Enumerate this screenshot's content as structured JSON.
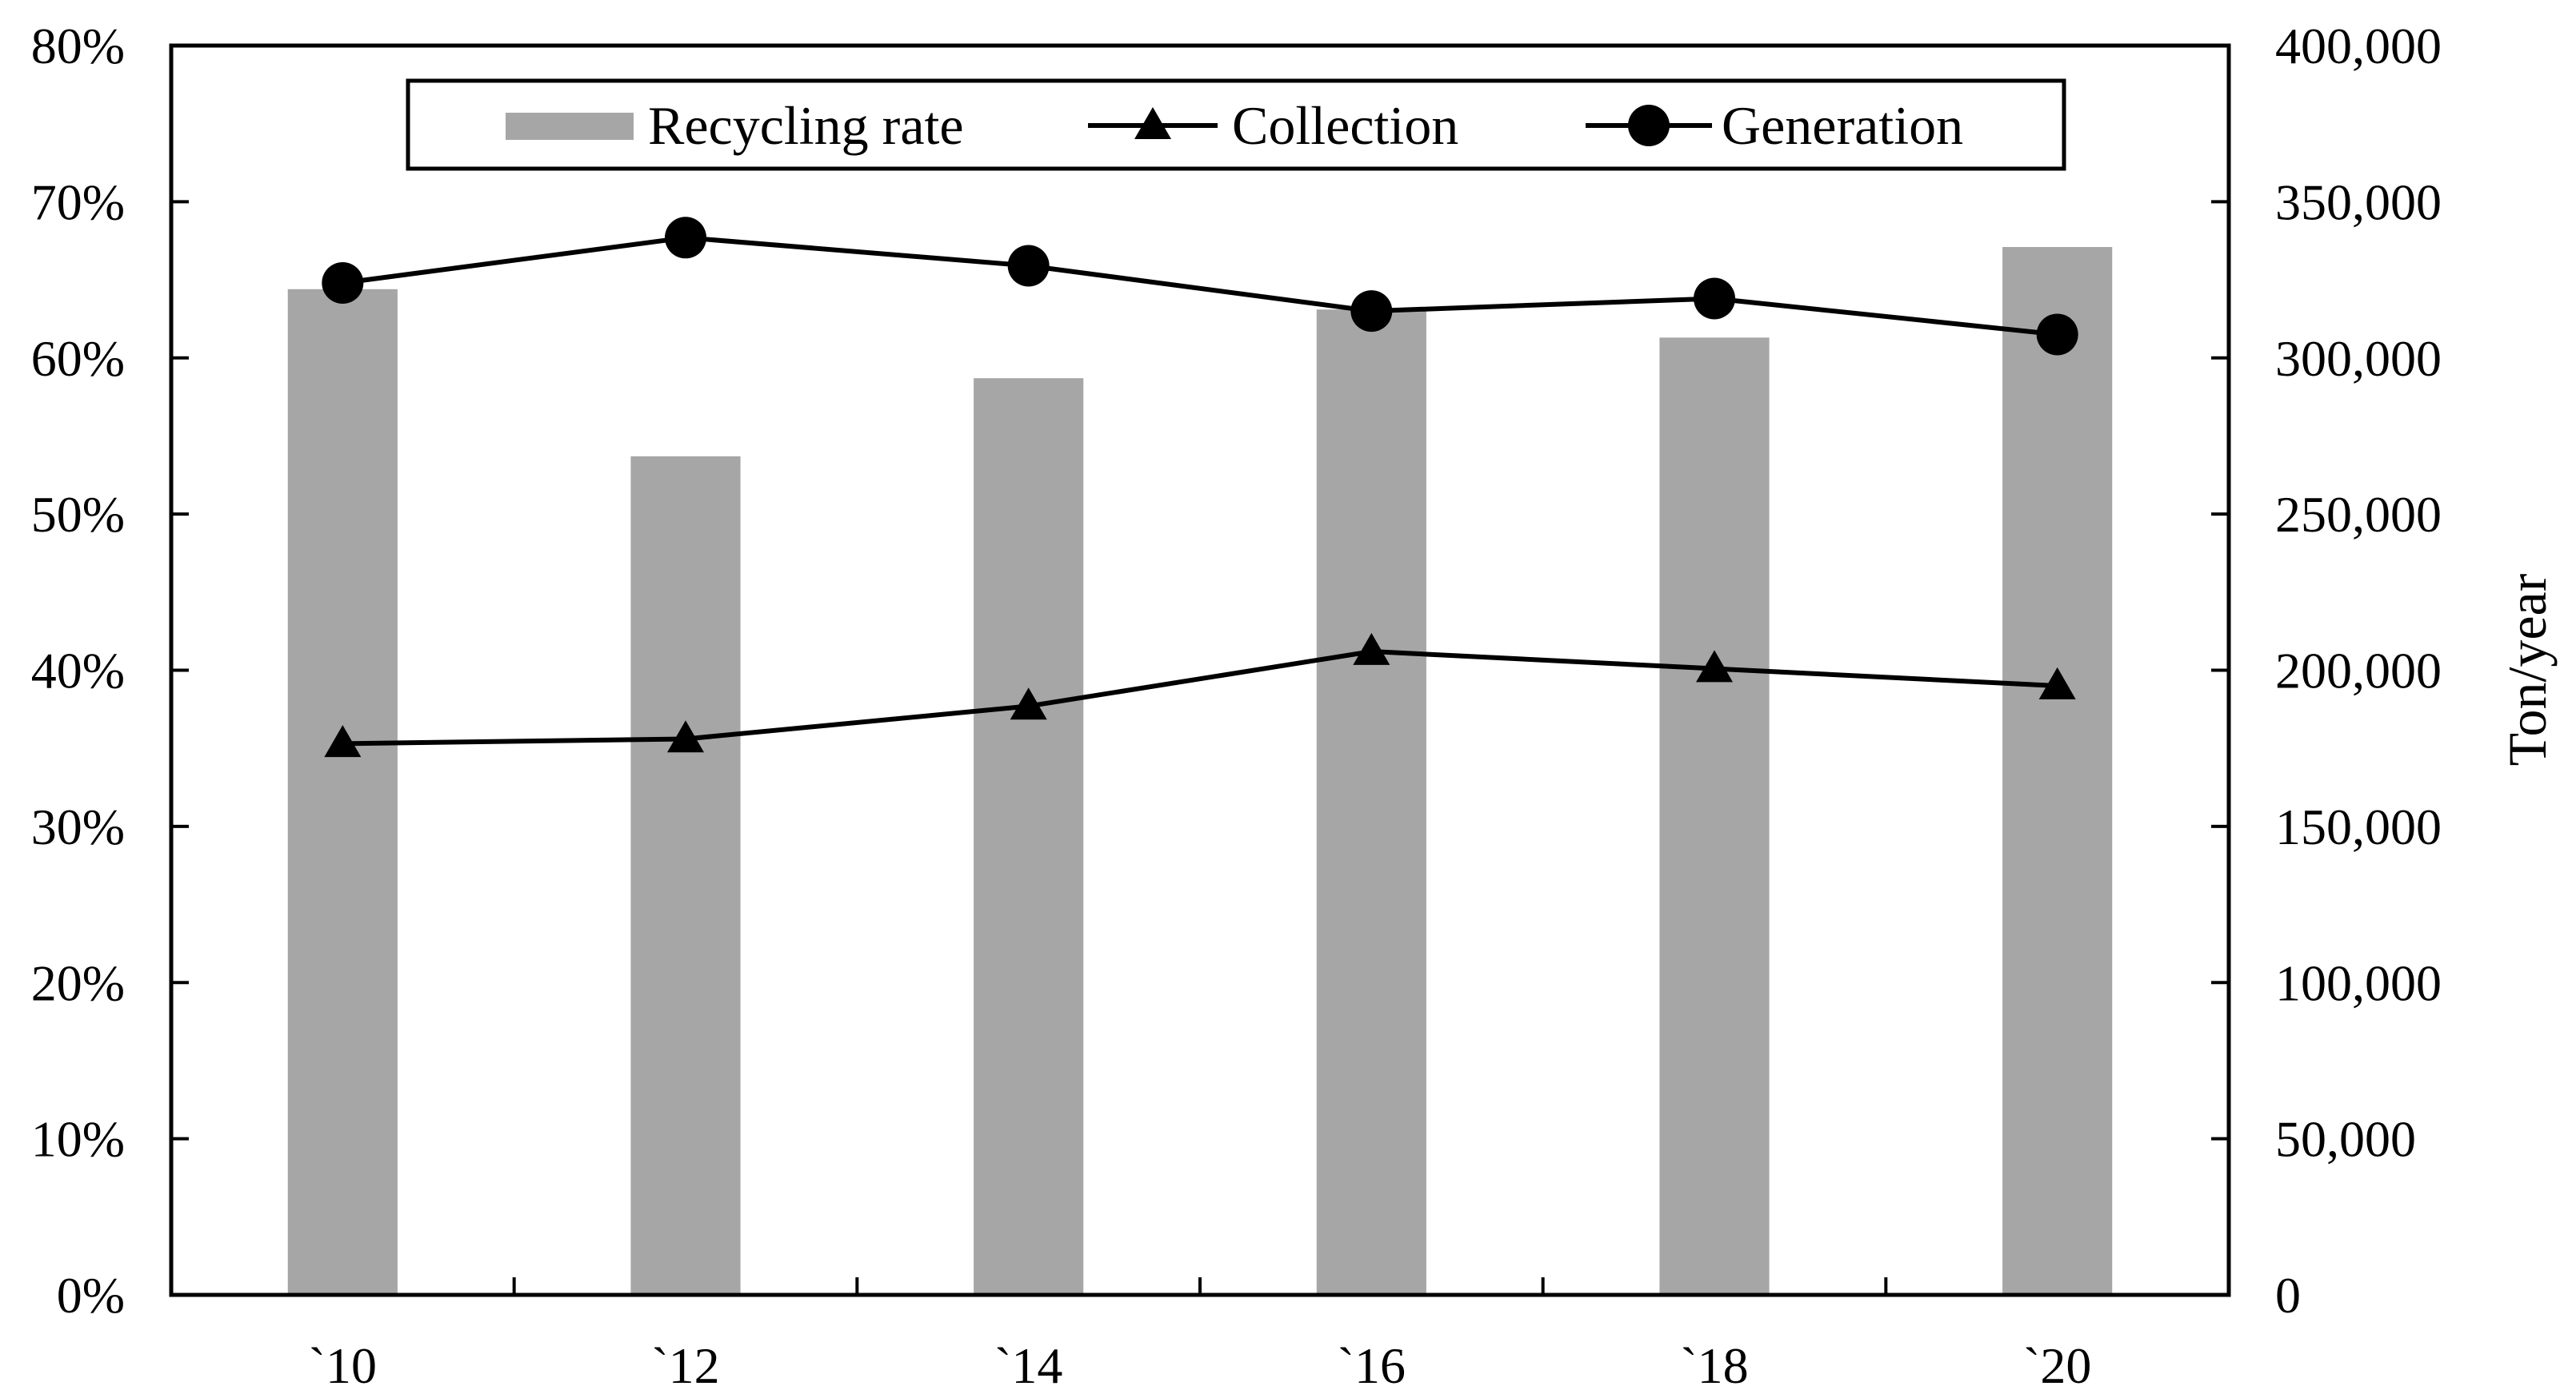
{
  "chart_data": {
    "type": "bar+line",
    "categories": [
      "`10",
      "`12",
      "`14",
      "`16",
      "`18",
      "`20"
    ],
    "bars": {
      "name": "Recycling rate",
      "axis": "left",
      "values": [
        64.4,
        53.7,
        58.7,
        63.1,
        61.3,
        67.1
      ],
      "unit": "%"
    },
    "series": [
      {
        "name": "Collection",
        "axis": "right",
        "marker": "triangle",
        "values": [
          176500,
          178000,
          188500,
          206000,
          200500,
          195000
        ]
      },
      {
        "name": "Generation",
        "axis": "right",
        "marker": "circle",
        "values": [
          324000,
          338500,
          329500,
          315000,
          319000,
          307500
        ]
      }
    ],
    "left_axis": {
      "range": [
        0,
        80
      ],
      "ticks": [
        "0%",
        "10%",
        "20%",
        "30%",
        "40%",
        "50%",
        "60%",
        "70%",
        "80%"
      ],
      "label": ""
    },
    "right_axis": {
      "range": [
        0,
        400000
      ],
      "ticks": [
        "0",
        "50,000",
        "100,000",
        "150,000",
        "200,000",
        "250,000",
        "300,000",
        "350,000",
        "400,000"
      ],
      "label": "Ton/year"
    },
    "legend": {
      "placement": "top-center",
      "entries": [
        "Recycling rate",
        "Collection",
        "Generation"
      ]
    },
    "colors": {
      "bar": "#a6a6a6",
      "line": "#000000"
    }
  }
}
